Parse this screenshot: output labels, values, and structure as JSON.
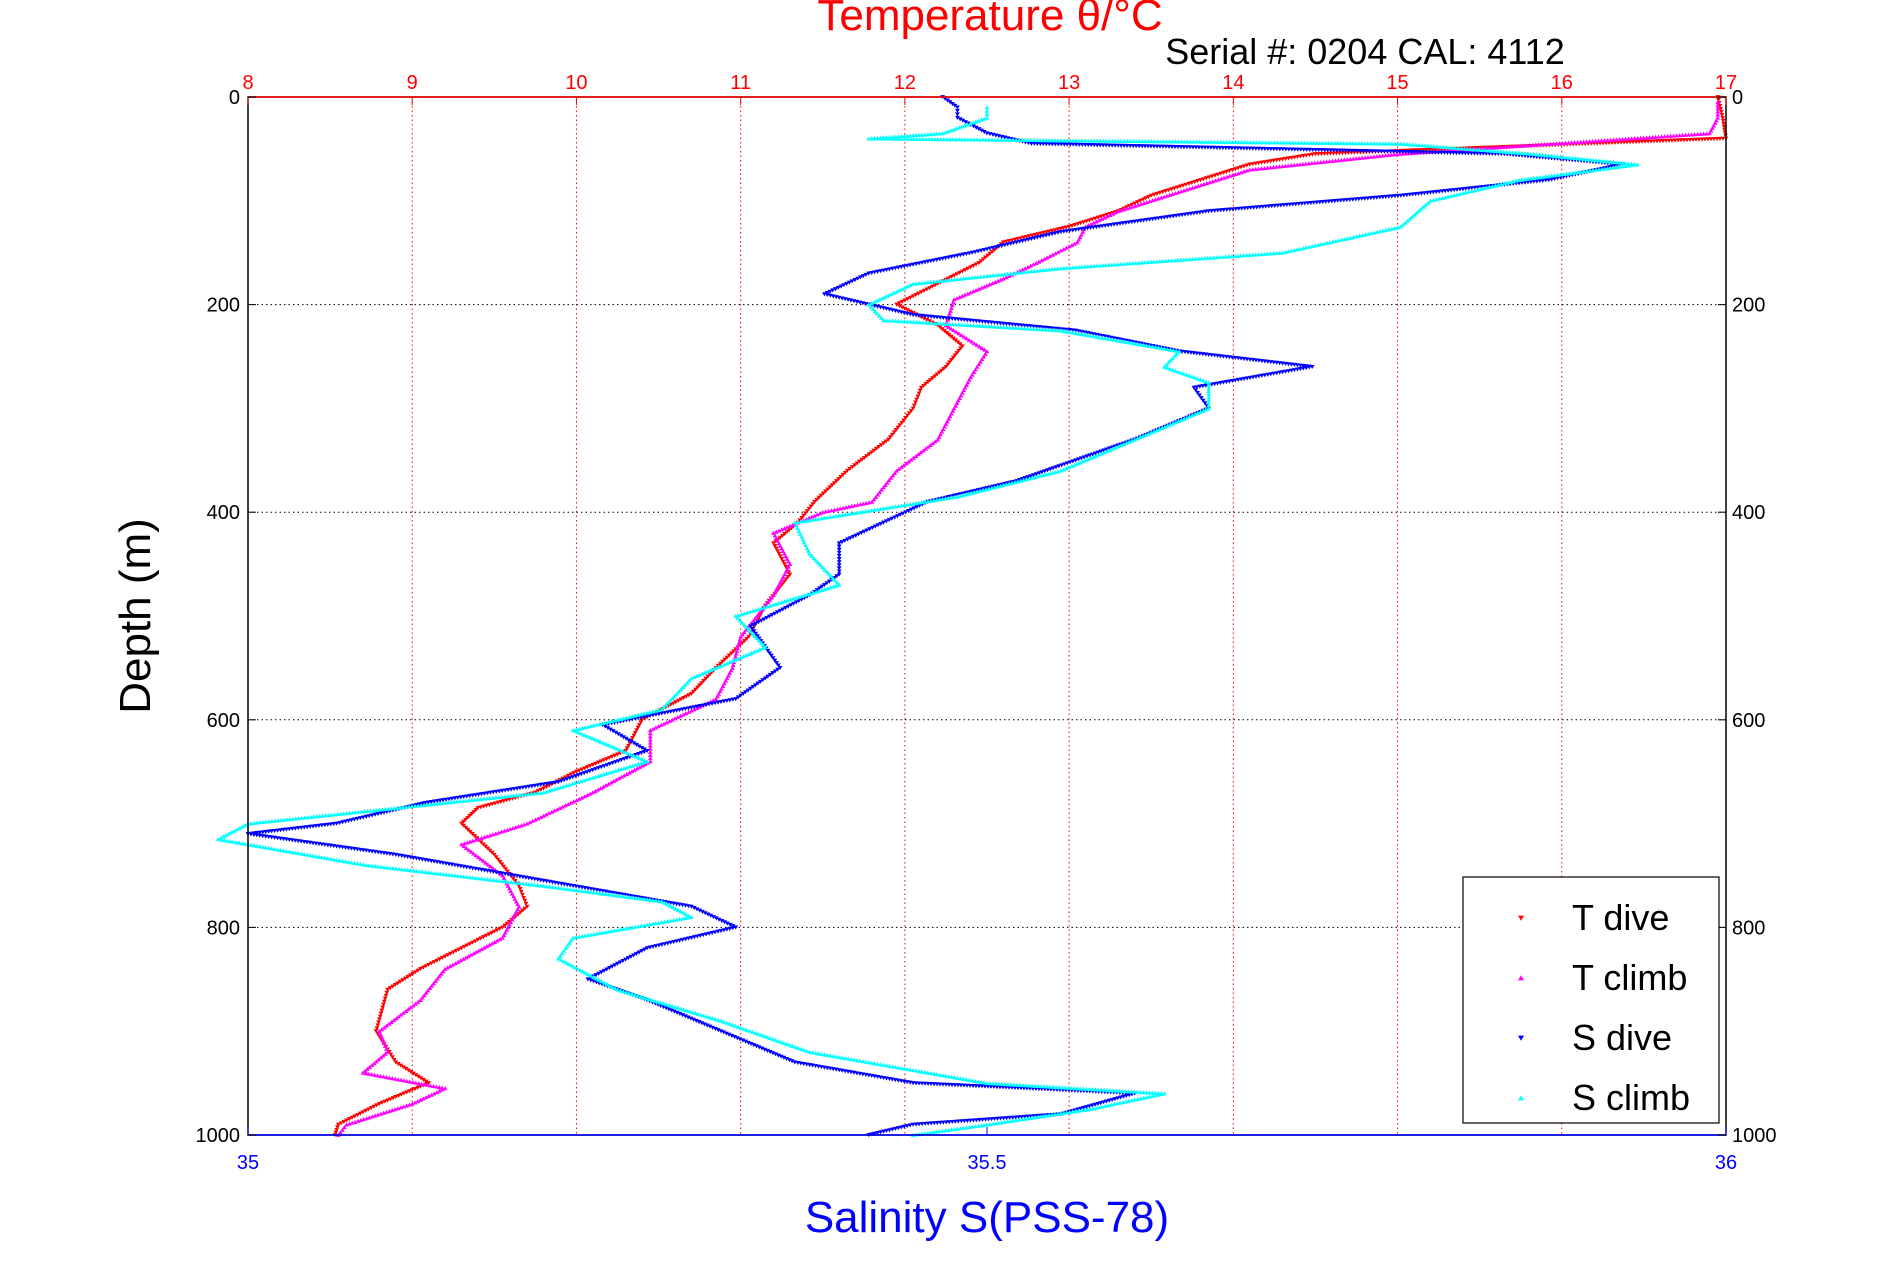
{
  "chart_data": {
    "type": "scatter",
    "title": "Temperature θ/°C",
    "subtitle": "Serial #: 0204  CAL: 4112",
    "ylabel": "Depth (m)",
    "x_bottom_label": "Salinity S(PSS-78)",
    "y_range": [
      0,
      1000
    ],
    "y_reversed": true,
    "y_ticks": [
      0,
      200,
      400,
      600,
      800,
      1000
    ],
    "y_tick_labels": [
      "0",
      "200",
      "400",
      "600",
      "800",
      "1000"
    ],
    "x_top_range": [
      8,
      17
    ],
    "x_top_ticks": [
      8,
      9,
      10,
      11,
      12,
      13,
      14,
      15,
      16,
      17
    ],
    "x_top_tick_labels": [
      "8",
      "9",
      "10",
      "11",
      "12",
      "13",
      "14",
      "15",
      "16",
      "17"
    ],
    "x_bottom_range": [
      35,
      36
    ],
    "x_bottom_ticks": [
      35,
      35.5,
      36
    ],
    "x_bottom_tick_labels": [
      "35",
      "35.5",
      "36"
    ],
    "grid": true,
    "legend_position": "bottom-right",
    "colors": {
      "temperature_axis": "#ff0000",
      "salinity_axis": "#0000ff",
      "grid_vertical": "#ff0000",
      "grid_horizontal": "#000000"
    },
    "series": [
      {
        "name": "T dive",
        "axis": "temperature",
        "marker": "down-triangle",
        "color": "#ff0000",
        "points": [
          [
            16.95,
            0
          ],
          [
            16.98,
            20
          ],
          [
            17.0,
            40
          ],
          [
            14.5,
            55
          ],
          [
            14.1,
            65
          ],
          [
            13.8,
            80
          ],
          [
            13.5,
            95
          ],
          [
            13.3,
            110
          ],
          [
            13.0,
            125
          ],
          [
            12.6,
            140
          ],
          [
            12.45,
            160
          ],
          [
            12.2,
            180
          ],
          [
            11.95,
            200
          ],
          [
            12.2,
            220
          ],
          [
            12.35,
            240
          ],
          [
            12.25,
            260
          ],
          [
            12.1,
            280
          ],
          [
            12.05,
            300
          ],
          [
            11.9,
            330
          ],
          [
            11.65,
            360
          ],
          [
            11.45,
            390
          ],
          [
            11.35,
            410
          ],
          [
            11.2,
            430
          ],
          [
            11.3,
            460
          ],
          [
            11.15,
            490
          ],
          [
            11.05,
            520
          ],
          [
            10.85,
            550
          ],
          [
            10.7,
            575
          ],
          [
            10.4,
            600
          ],
          [
            10.3,
            630
          ],
          [
            10.0,
            650
          ],
          [
            9.75,
            670
          ],
          [
            9.4,
            685
          ],
          [
            9.3,
            700
          ],
          [
            9.5,
            730
          ],
          [
            9.65,
            760
          ],
          [
            9.7,
            780
          ],
          [
            9.55,
            800
          ],
          [
            9.3,
            820
          ],
          [
            9.05,
            840
          ],
          [
            8.85,
            860
          ],
          [
            8.78,
            900
          ],
          [
            8.9,
            930
          ],
          [
            9.1,
            950
          ],
          [
            8.8,
            970
          ],
          [
            8.55,
            990
          ],
          [
            8.53,
            1000
          ]
        ]
      },
      {
        "name": "T climb",
        "axis": "temperature",
        "marker": "up-triangle",
        "color": "#ff00ff",
        "points": [
          [
            16.95,
            5
          ],
          [
            16.95,
            20
          ],
          [
            16.9,
            35
          ],
          [
            15.0,
            55
          ],
          [
            14.1,
            70
          ],
          [
            13.7,
            90
          ],
          [
            13.3,
            110
          ],
          [
            13.1,
            125
          ],
          [
            13.05,
            140
          ],
          [
            12.8,
            160
          ],
          [
            12.6,
            175
          ],
          [
            12.3,
            195
          ],
          [
            12.25,
            220
          ],
          [
            12.5,
            245
          ],
          [
            12.4,
            270
          ],
          [
            12.3,
            300
          ],
          [
            12.2,
            330
          ],
          [
            11.95,
            360
          ],
          [
            11.8,
            390
          ],
          [
            11.5,
            400
          ],
          [
            11.2,
            420
          ],
          [
            11.3,
            450
          ],
          [
            11.2,
            480
          ],
          [
            11.0,
            520
          ],
          [
            10.95,
            550
          ],
          [
            10.85,
            580
          ],
          [
            10.45,
            610
          ],
          [
            10.45,
            640
          ],
          [
            10.1,
            670
          ],
          [
            9.7,
            700
          ],
          [
            9.3,
            720
          ],
          [
            9.55,
            750
          ],
          [
            9.65,
            780
          ],
          [
            9.55,
            810
          ],
          [
            9.2,
            840
          ],
          [
            9.05,
            870
          ],
          [
            8.8,
            900
          ],
          [
            8.85,
            920
          ],
          [
            8.7,
            940
          ],
          [
            9.2,
            955
          ],
          [
            9.0,
            970
          ],
          [
            8.6,
            990
          ],
          [
            8.55,
            1000
          ]
        ]
      },
      {
        "name": "S dive",
        "axis": "salinity",
        "marker": "down-triangle",
        "color": "#0000ff",
        "points": [
          [
            35.47,
            0
          ],
          [
            35.48,
            10
          ],
          [
            35.48,
            20
          ],
          [
            35.5,
            35
          ],
          [
            35.53,
            45
          ],
          [
            35.85,
            55
          ],
          [
            35.93,
            65
          ],
          [
            35.88,
            80
          ],
          [
            35.78,
            95
          ],
          [
            35.65,
            110
          ],
          [
            35.55,
            130
          ],
          [
            35.49,
            150
          ],
          [
            35.42,
            170
          ],
          [
            35.39,
            190
          ],
          [
            35.45,
            210
          ],
          [
            35.56,
            225
          ],
          [
            35.63,
            245
          ],
          [
            35.72,
            260
          ],
          [
            35.64,
            280
          ],
          [
            35.65,
            300
          ],
          [
            35.6,
            330
          ],
          [
            35.56,
            350
          ],
          [
            35.52,
            370
          ],
          [
            35.46,
            390
          ],
          [
            35.43,
            410
          ],
          [
            35.4,
            430
          ],
          [
            35.4,
            460
          ],
          [
            35.38,
            480
          ],
          [
            35.34,
            510
          ],
          [
            35.36,
            550
          ],
          [
            35.33,
            580
          ],
          [
            35.24,
            605
          ],
          [
            35.27,
            630
          ],
          [
            35.21,
            660
          ],
          [
            35.12,
            680
          ],
          [
            35.06,
            700
          ],
          [
            35.0,
            710
          ],
          [
            35.1,
            730
          ],
          [
            35.22,
            760
          ],
          [
            35.3,
            780
          ],
          [
            35.33,
            800
          ],
          [
            35.27,
            820
          ],
          [
            35.23,
            850
          ],
          [
            35.27,
            870
          ],
          [
            35.32,
            900
          ],
          [
            35.37,
            930
          ],
          [
            35.45,
            950
          ],
          [
            35.6,
            960
          ],
          [
            35.55,
            980
          ],
          [
            35.45,
            990
          ],
          [
            35.42,
            1000
          ]
        ]
      },
      {
        "name": "S climb",
        "axis": "salinity",
        "marker": "up-triangle",
        "color": "#00ffff",
        "points": [
          [
            35.5,
            10
          ],
          [
            35.5,
            20
          ],
          [
            35.47,
            35
          ],
          [
            35.42,
            40
          ],
          [
            35.78,
            45
          ],
          [
            35.87,
            55
          ],
          [
            35.94,
            65
          ],
          [
            35.86,
            80
          ],
          [
            35.8,
            100
          ],
          [
            35.78,
            125
          ],
          [
            35.7,
            150
          ],
          [
            35.55,
            165
          ],
          [
            35.45,
            180
          ],
          [
            35.42,
            200
          ],
          [
            35.43,
            215
          ],
          [
            35.55,
            225
          ],
          [
            35.63,
            245
          ],
          [
            35.62,
            260
          ],
          [
            35.65,
            275
          ],
          [
            35.65,
            300
          ],
          [
            35.6,
            330
          ],
          [
            35.55,
            360
          ],
          [
            35.48,
            385
          ],
          [
            35.37,
            410
          ],
          [
            35.38,
            440
          ],
          [
            35.4,
            470
          ],
          [
            35.33,
            500
          ],
          [
            35.35,
            530
          ],
          [
            35.3,
            560
          ],
          [
            35.28,
            590
          ],
          [
            35.22,
            610
          ],
          [
            35.27,
            640
          ],
          [
            35.2,
            670
          ],
          [
            35.0,
            700
          ],
          [
            34.98,
            715
          ],
          [
            35.08,
            740
          ],
          [
            35.2,
            760
          ],
          [
            35.28,
            775
          ],
          [
            35.3,
            790
          ],
          [
            35.22,
            810
          ],
          [
            35.21,
            830
          ],
          [
            35.25,
            860
          ],
          [
            35.32,
            890
          ],
          [
            35.38,
            920
          ],
          [
            35.5,
            950
          ],
          [
            35.62,
            960
          ],
          [
            35.57,
            975
          ],
          [
            35.5,
            990
          ],
          [
            35.45,
            1000
          ]
        ]
      }
    ]
  }
}
